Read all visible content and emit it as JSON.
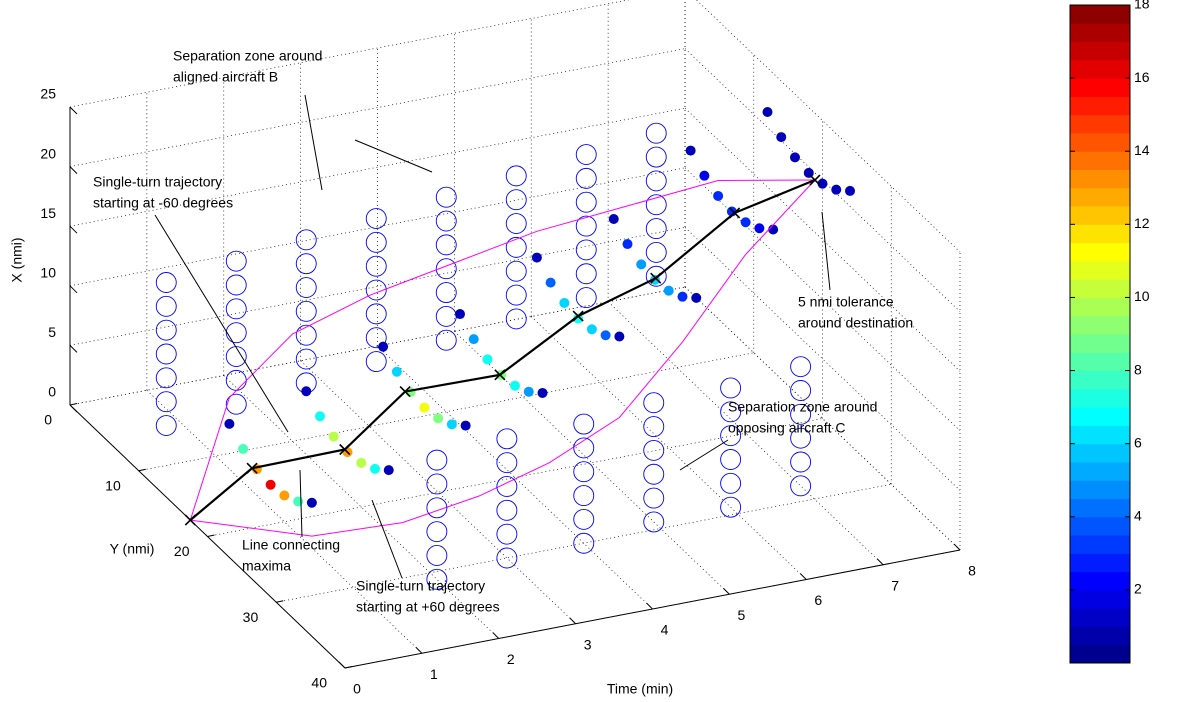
{
  "chart_data": {
    "type": "scatter3d",
    "xlabel": "Time (min)",
    "ylabel": "Y (nmi)",
    "zlabel": "X (nmi)",
    "xlim": [
      0,
      8
    ],
    "xticks": [
      0,
      1,
      2,
      3,
      4,
      5,
      6,
      7,
      8
    ],
    "ylim": [
      0,
      40
    ],
    "yticks": [
      0,
      10,
      20,
      30,
      40
    ],
    "zlim": [
      0,
      25
    ],
    "zticks": [
      0,
      5,
      10,
      15,
      20,
      25
    ],
    "grid": true,
    "colormap": "jet",
    "clim": [
      0,
      18
    ],
    "cticks": [
      2,
      4,
      6,
      8,
      10,
      12,
      14,
      16,
      18
    ],
    "series": [
      {
        "marker": "open",
        "color": "#0000ff",
        "x": [
          0,
          0,
          0,
          0,
          0,
          0,
          0,
          1,
          1,
          1,
          1,
          1,
          1,
          1,
          2,
          2,
          2,
          2,
          2,
          2,
          2,
          3,
          3,
          3,
          3,
          3,
          3,
          3,
          4,
          4,
          4,
          4,
          4,
          4,
          4,
          5,
          5,
          5,
          5,
          5,
          5,
          5,
          6,
          6,
          6,
          6,
          6,
          6,
          6,
          7,
          7,
          7,
          7,
          7,
          7,
          7
        ],
        "y": [
          14,
          14,
          14,
          14,
          14,
          14,
          14,
          13,
          13,
          13,
          13,
          13,
          13,
          13,
          12,
          12,
          12,
          12,
          12,
          12,
          12,
          11,
          11,
          11,
          11,
          11,
          11,
          11,
          10,
          10,
          10,
          10,
          10,
          10,
          10,
          9,
          9,
          9,
          9,
          9,
          9,
          9,
          8,
          8,
          8,
          8,
          8,
          8,
          8,
          7,
          7,
          7,
          7,
          7,
          7,
          7
        ],
        "z": [
          6,
          8,
          10,
          12,
          14,
          16,
          18,
          6,
          8,
          10,
          12,
          14,
          16,
          18,
          6,
          8,
          10,
          12,
          14,
          16,
          18,
          6,
          8,
          10,
          12,
          14,
          16,
          18,
          6,
          8,
          10,
          12,
          14,
          16,
          18,
          6,
          8,
          10,
          12,
          14,
          16,
          18,
          6,
          8,
          10,
          12,
          14,
          16,
          18,
          6,
          8,
          10,
          12,
          14,
          16,
          18
        ]
      },
      {
        "marker": "filled",
        "x": [
          1,
          1,
          1,
          1,
          1,
          1,
          1,
          2,
          2,
          2,
          2,
          2,
          2,
          2,
          3,
          3,
          3,
          3,
          3,
          3,
          3,
          4,
          4,
          4,
          4,
          4,
          4,
          4,
          5,
          5,
          5,
          5,
          5,
          5,
          5,
          6,
          6,
          6,
          6,
          6,
          6,
          6,
          7,
          7,
          7,
          7,
          7,
          7,
          7,
          8,
          8,
          8,
          8,
          8,
          8,
          8
        ],
        "y": [
          12,
          14,
          16,
          18,
          20,
          22,
          24,
          12,
          14,
          16,
          18,
          20,
          22,
          24,
          12,
          14,
          16,
          18,
          20,
          22,
          24,
          12,
          14,
          16,
          18,
          20,
          22,
          24,
          12,
          14,
          16,
          18,
          20,
          22,
          24,
          12,
          14,
          16,
          18,
          20,
          22,
          24,
          12,
          14,
          16,
          18,
          20,
          22,
          24,
          12,
          14,
          16,
          18,
          20,
          22,
          24
        ],
        "z": [
          3.8,
          2.8,
          2.2,
          2,
          2.2,
          2.8,
          3.8,
          5.3,
          4.3,
          3.7,
          3.5,
          3.7,
          4.3,
          5.3,
          7.8,
          6.8,
          6.2,
          6,
          6.2,
          6.8,
          7.8,
          9.3,
          8.3,
          7.7,
          7.5,
          7.7,
          8.3,
          9.3,
          12.8,
          11.8,
          11.2,
          11,
          11.2,
          11.8,
          12.8,
          14.8,
          13.8,
          13.2,
          13,
          13.2,
          13.8,
          14.8,
          19.3,
          18.3,
          17.7,
          17.5,
          17.7,
          18.3,
          19.3,
          21.3,
          20.3,
          19.7,
          19.5,
          19.7,
          20.3,
          21.3
        ],
        "c": [
          1,
          8,
          13,
          16,
          13,
          8,
          1,
          1,
          7,
          10,
          13,
          10,
          7,
          1,
          1,
          6,
          9,
          11,
          9,
          6,
          1,
          1,
          5,
          7,
          9,
          7,
          5,
          1,
          1,
          4,
          6,
          7,
          6,
          4,
          1,
          1,
          3,
          5,
          6,
          5,
          3,
          1,
          1,
          2,
          3,
          3,
          3,
          2,
          1,
          1,
          1,
          1,
          1,
          1,
          1,
          1
        ]
      },
      {
        "marker": "line",
        "color": "#ff00ff",
        "x": [
          0,
          1,
          2,
          3,
          4,
          5,
          6,
          7,
          8
        ],
        "y": [
          17.5,
          12,
          10,
          10,
          11,
          12,
          14,
          16,
          18.9
        ],
        "z": [
          0,
          6,
          9,
          11,
          13,
          15,
          17,
          19,
          19.4
        ]
      },
      {
        "marker": "line",
        "color": "#ff00ff",
        "x": [
          0,
          1,
          2,
          3,
          4,
          5,
          6,
          7,
          8
        ],
        "y": [
          17.5,
          24,
          26,
          26,
          25,
          24,
          22,
          20,
          18.9
        ],
        "z": [
          0,
          1,
          2,
          3,
          4,
          6,
          10,
          15,
          19.4
        ]
      },
      {
        "marker": "line-x",
        "color": "#000000",
        "x": [
          0,
          1,
          2,
          3,
          4,
          5,
          6,
          7,
          8
        ],
        "y": [
          17.5,
          15.3,
          17.6,
          15.2,
          17.8,
          18,
          18.1,
          18.4,
          18.9
        ],
        "z": [
          0,
          1.9,
          3.5,
          5.8,
          7.4,
          11.2,
          13.2,
          17.6,
          19.4
        ]
      },
      {
        "marker": "open",
        "color": "#0000ff",
        "x": [
          2,
          2,
          2,
          2,
          2,
          2,
          3,
          3,
          3,
          3,
          3,
          3,
          4,
          4,
          4,
          4,
          4,
          4,
          5,
          5,
          5,
          5,
          5,
          5,
          6,
          6,
          6,
          6,
          6,
          6,
          7,
          7,
          7,
          7,
          7,
          7
        ],
        "y": [
          31,
          31,
          31,
          31,
          31,
          31,
          30,
          30,
          30,
          30,
          30,
          30,
          30,
          30,
          30,
          30,
          30,
          30,
          29,
          29,
          29,
          29,
          29,
          29,
          29,
          29,
          29,
          29,
          29,
          29,
          28,
          28,
          28,
          28,
          28,
          28
        ],
        "z": [
          0,
          2,
          4,
          6,
          8,
          10,
          0,
          2,
          4,
          6,
          8,
          10,
          0,
          2,
          4,
          6,
          8,
          10,
          0,
          2,
          4,
          6,
          8,
          10,
          0,
          2,
          4,
          6,
          8,
          10,
          0,
          2,
          4,
          6,
          8,
          10
        ]
      }
    ],
    "annotations": [
      [
        "Separation zone around",
        "aligned aircraft B"
      ],
      [
        "Single-turn trajectory",
        "starting at -60 degrees"
      ],
      [
        "5 nmi tolerance",
        "around destination"
      ],
      [
        "Separation zone around",
        "opposing aircraft C"
      ],
      [
        "Line connecting",
        "maxima"
      ],
      [
        "Single-turn trajectory",
        "starting at +60 degrees"
      ]
    ]
  }
}
